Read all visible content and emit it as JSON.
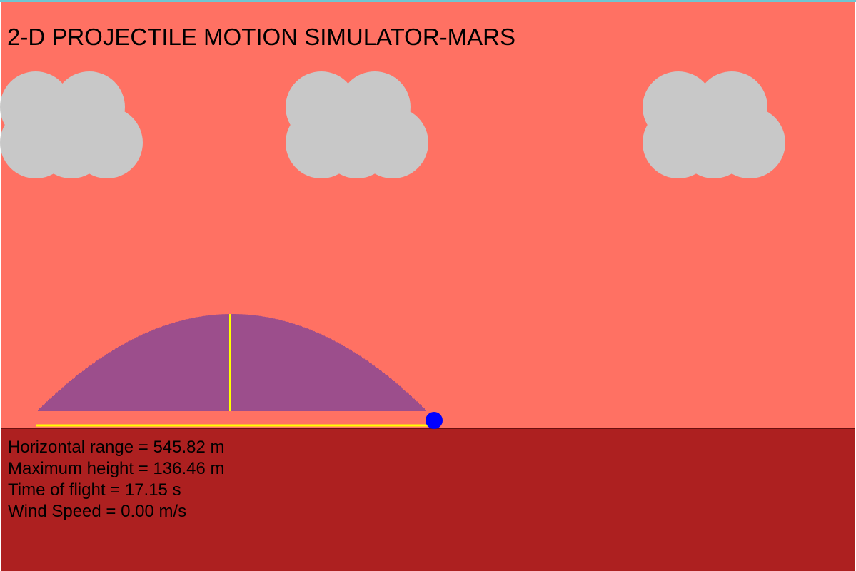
{
  "title": "2-D PROJECTILE MOTION SIMULATOR-MARS",
  "colors": {
    "sky": "#ff7163",
    "ground": "#ad2020",
    "cloud": "#c8c8c8",
    "trajectory": "#3a2ab4",
    "marker_line": "#ffff00",
    "projectile": "#0000ff"
  },
  "scene": {
    "clouds": [
      "cloud-1",
      "cloud-2",
      "cloud-3"
    ],
    "projectile_icon": "blue-ball-icon",
    "trajectory_style": "vertical-hatch-under-arc",
    "max_height_marker": "vertical-yellow-line",
    "range_marker": "horizontal-yellow-line"
  },
  "stats": {
    "range_label": "Horizontal range = 545.82 m",
    "height_label": "Maximum height = 136.46 m",
    "time_label": "Time of flight = 17.15 s",
    "wind_label": "Wind Speed = 0.00 m/s"
  },
  "simulation": {
    "horizontal_range_m": 545.82,
    "maximum_height_m": 136.46,
    "time_of_flight_s": 17.15,
    "wind_speed_m_s": 0.0
  }
}
